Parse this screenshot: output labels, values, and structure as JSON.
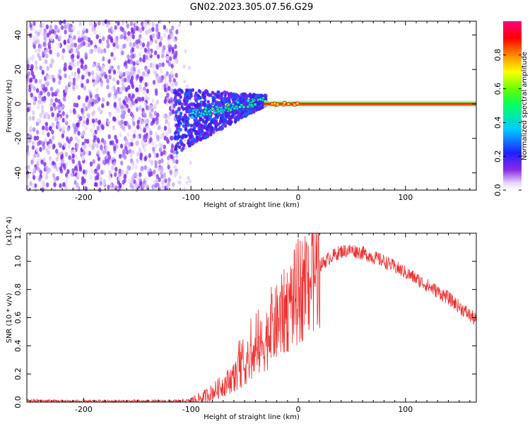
{
  "figure": {
    "title": "GN02.2023.305.07.56.G29"
  },
  "chart_data": [
    {
      "type": "heatmap",
      "xlabel": "Height of straight line (km)",
      "ylabel": "Frequency (Hz)",
      "xlim": [
        -253,
        166
      ],
      "ylim": [
        -50,
        48
      ],
      "xticks": [
        -200,
        -100,
        0,
        100
      ],
      "yticks": [
        -40,
        -20,
        0,
        20,
        40
      ],
      "colorbar": {
        "label": "Normalized spectral amplitude",
        "range": [
          0,
          1
        ],
        "ticks": [
          "0.0",
          "0.2",
          "0.4",
          "0.6",
          "0.8"
        ],
        "colormap": "rainbow (white-violet-blue-cyan-green-yellow-red-magenta)"
      },
      "features": [
        {
          "x_range": [
            -253,
            -115
          ],
          "freq_range": [
            -50,
            48
          ],
          "amplitude": "low (0.0-0.15)",
          "description": "broad noise"
        },
        {
          "x_range": [
            -115,
            -30
          ],
          "freq_center_start": -10,
          "freq_center_end": 2,
          "amplitude": "0.1-0.5",
          "description": "converging signal"
        },
        {
          "x_range": [
            -30,
            166
          ],
          "freq": 0,
          "amplitude": "0.9-1.0",
          "description": "narrow band at 0 Hz"
        }
      ]
    },
    {
      "type": "line",
      "xlabel": "Height of straight line (km)",
      "ylabel": "SNR (10 * v/v)",
      "y_multiplier": "(x10^4)",
      "xlim": [
        -253,
        166
      ],
      "ylim": [
        0,
        1.2
      ],
      "xticks": [
        -200,
        -100,
        0,
        100
      ],
      "yticks": [
        "0.0",
        "0.2",
        "0.4",
        "0.6",
        "0.8",
        "1.0",
        "1.2"
      ],
      "series": [
        {
          "color": "#ee3030",
          "x": [
            -253,
            -200,
            -150,
            -110,
            -100,
            -90,
            -80,
            -70,
            -60,
            -50,
            -40,
            -30,
            -20,
            -10,
            0,
            10,
            20,
            30,
            40,
            50,
            60,
            80,
            100,
            120,
            140,
            166
          ],
          "y": [
            0.01,
            0.005,
            0.005,
            0.005,
            0.01,
            0.03,
            0.07,
            0.12,
            0.18,
            0.26,
            0.33,
            0.45,
            0.56,
            0.67,
            0.78,
            0.88,
            0.97,
            1.03,
            1.07,
            1.08,
            1.06,
            1.0,
            0.92,
            0.83,
            0.74,
            0.58
          ]
        }
      ]
    }
  ]
}
